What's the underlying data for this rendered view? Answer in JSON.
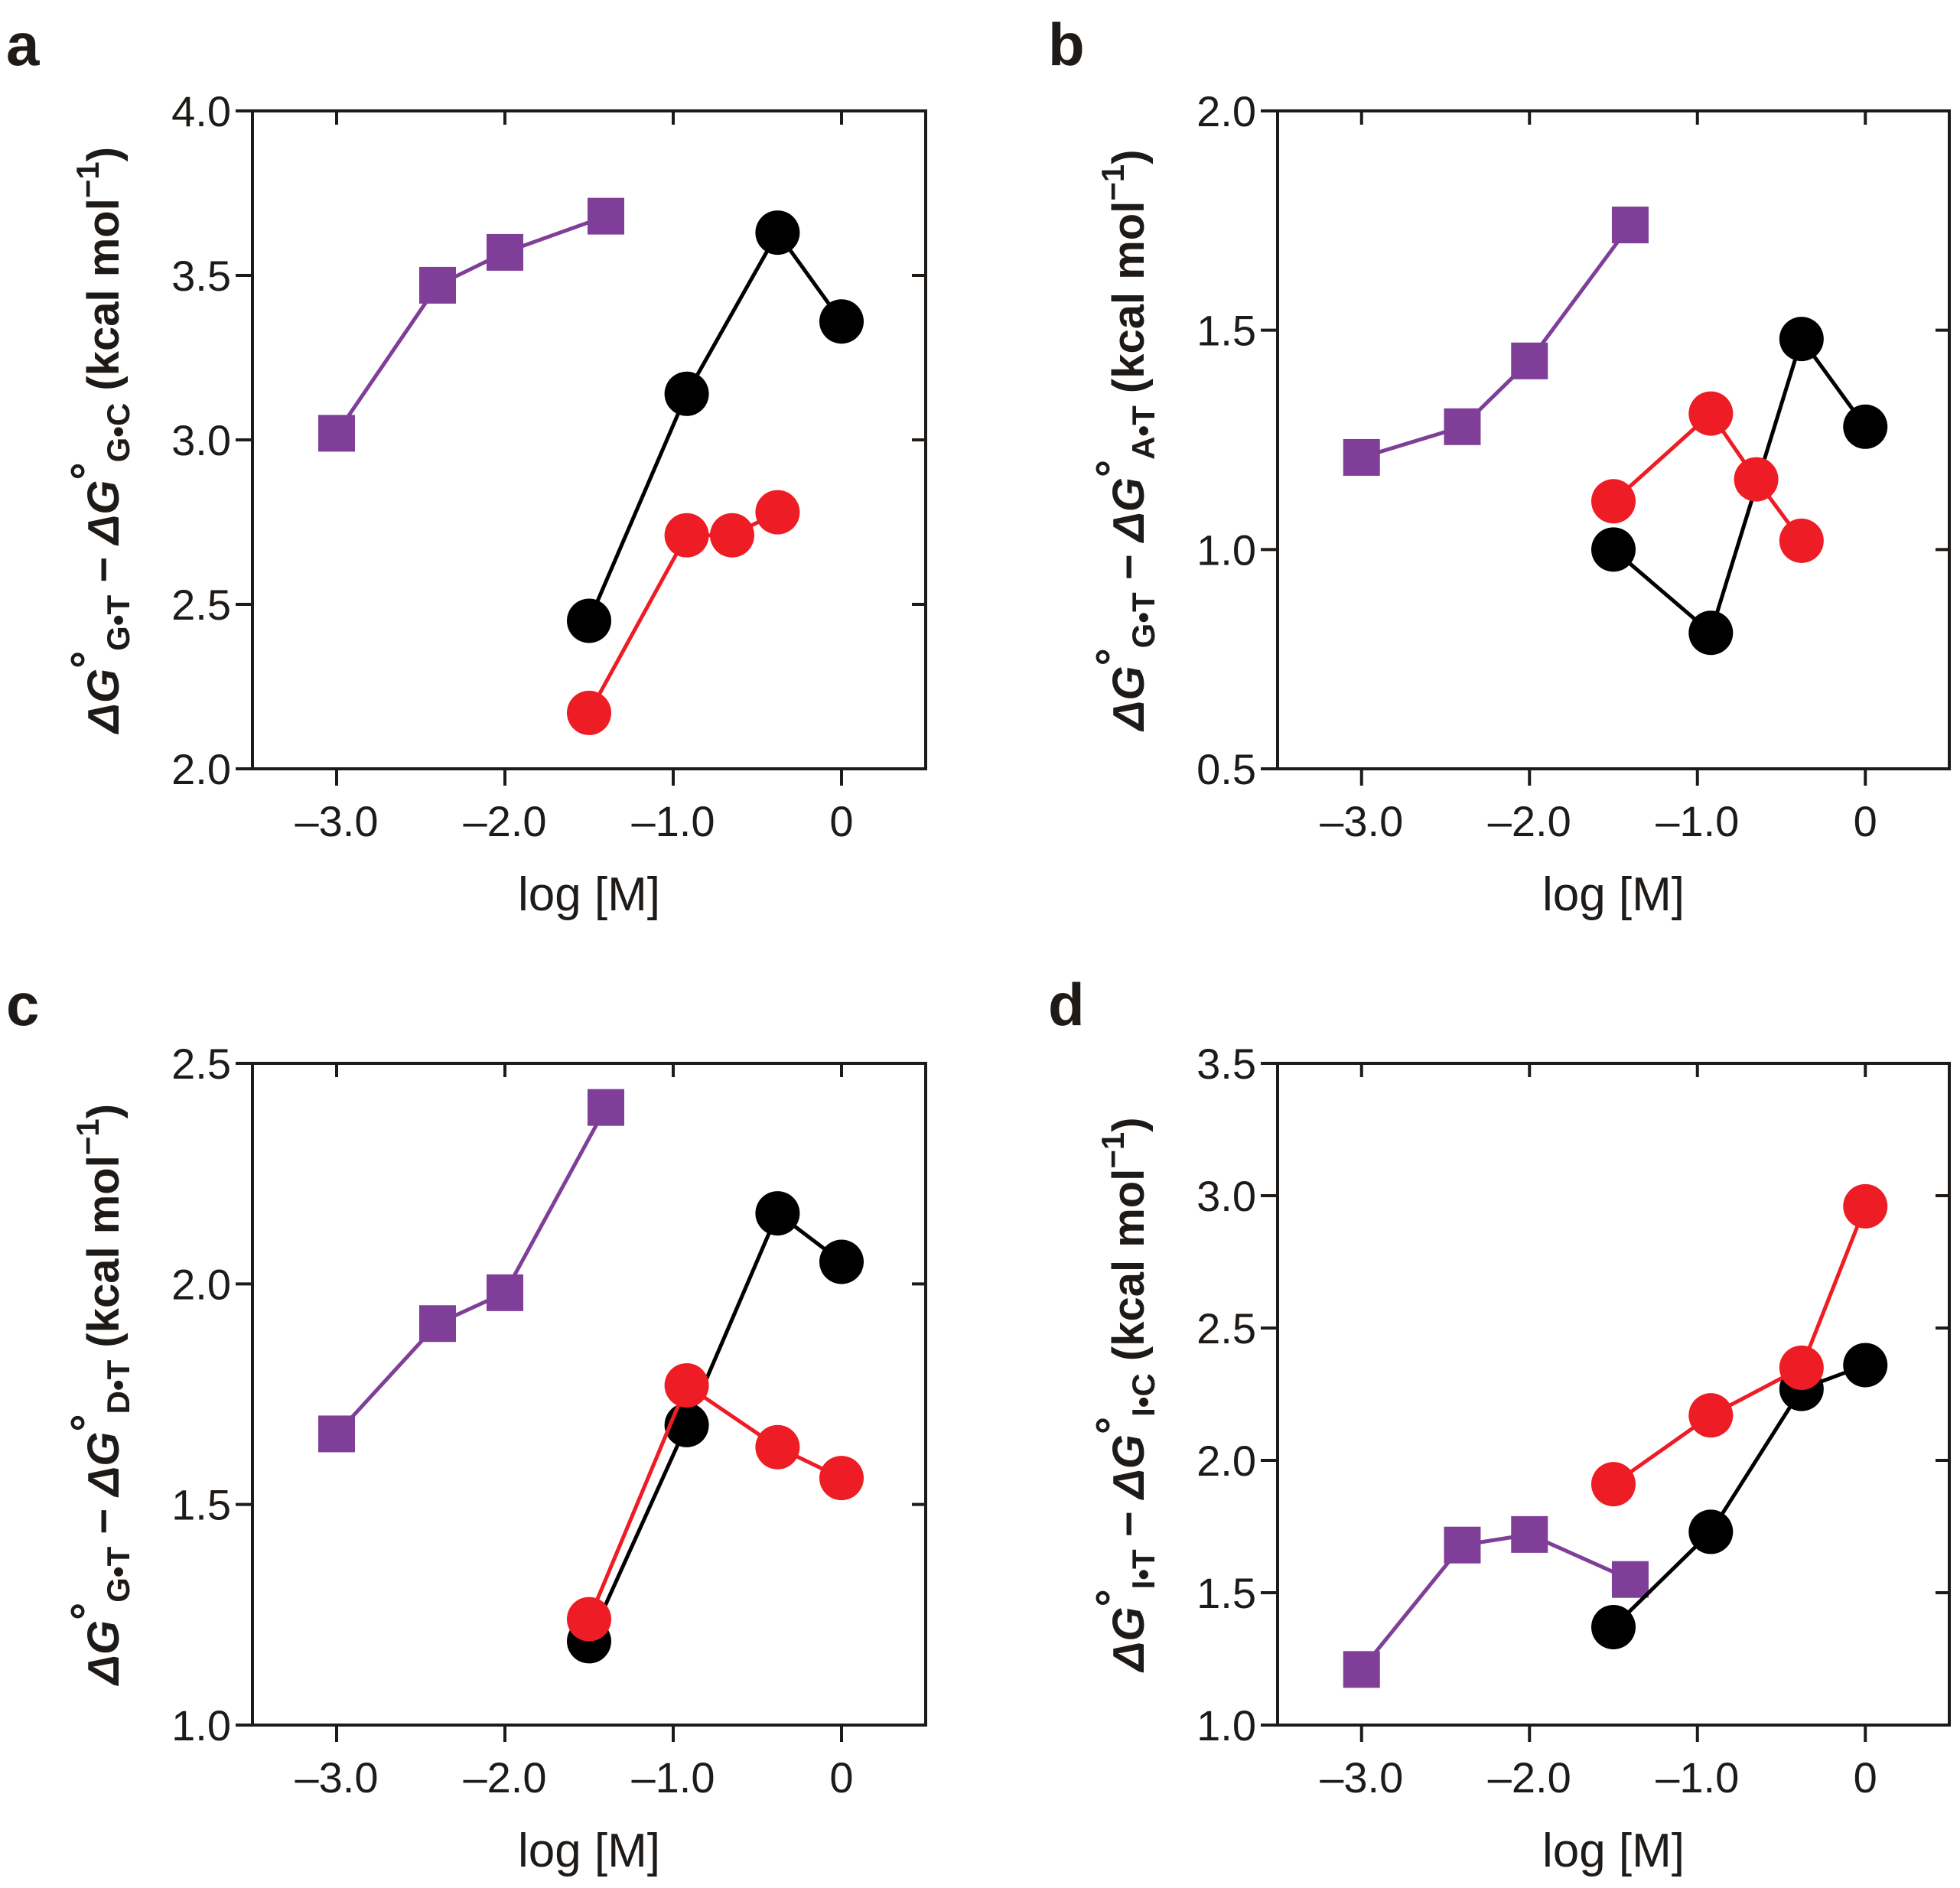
{
  "colors": {
    "purple": "#7f3f98",
    "black": "#000000",
    "red": "#ee1c24",
    "axis": "#1e1a17"
  },
  "chart_data": [
    {
      "panel": "a",
      "type": "line",
      "xlabel": "log [M]",
      "ylabel": {
        "delta": "ΔG",
        "deg": "°",
        "sub1": "G•T",
        "mid": " − ",
        "sub2": "G•C",
        "unit": " (kcal mol",
        "sup": "−1",
        "close": ")"
      },
      "xlim": [
        -3.5,
        0.5
      ],
      "ylim": [
        2.0,
        4.0
      ],
      "xticks": [
        -3.0,
        -2.0,
        -1.0,
        0
      ],
      "xtick_labels": [
        "–3.0",
        "–2.0",
        "–1.0",
        "0"
      ],
      "yticks": [
        2.0,
        2.5,
        3.0,
        3.5,
        4.0
      ],
      "ytick_labels": [
        "2.0",
        "2.5",
        "3.0",
        "3.5",
        "4.0"
      ],
      "series": [
        {
          "name": "purple-squares",
          "color": "purple",
          "marker": "square",
          "x": [
            -3.0,
            -2.4,
            -2.0,
            -1.4
          ],
          "y": [
            3.02,
            3.47,
            3.57,
            3.68
          ]
        },
        {
          "name": "black-circles",
          "color": "black",
          "marker": "circle",
          "x": [
            -1.5,
            -0.92,
            -0.38,
            0.0
          ],
          "y": [
            2.45,
            3.14,
            3.63,
            3.36
          ]
        },
        {
          "name": "red-circles",
          "color": "red",
          "marker": "circle",
          "x": [
            -1.5,
            -0.92,
            -0.65,
            -0.38
          ],
          "y": [
            2.17,
            2.71,
            2.71,
            2.78
          ]
        }
      ]
    },
    {
      "panel": "b",
      "type": "line",
      "xlabel": "log [M]",
      "ylabel": {
        "delta": "ΔG",
        "deg": "°",
        "sub1": "G•T",
        "mid": " − ",
        "sub2": "A•T",
        "unit": " (kcal mol",
        "sup": "−1",
        "close": ")"
      },
      "xlim": [
        -3.5,
        0.5
      ],
      "ylim": [
        0.5,
        2.0
      ],
      "xticks": [
        -3.0,
        -2.0,
        -1.0,
        0
      ],
      "xtick_labels": [
        "–3.0",
        "–2.0",
        "–1.0",
        "0"
      ],
      "yticks": [
        0.5,
        1.0,
        1.5,
        2.0
      ],
      "ytick_labels": [
        "0.5",
        "1.0",
        "1.5",
        "2.0"
      ],
      "series": [
        {
          "name": "purple-squares",
          "color": "purple",
          "marker": "square",
          "x": [
            -3.0,
            -2.4,
            -2.0,
            -1.4
          ],
          "y": [
            1.21,
            1.28,
            1.43,
            1.74
          ]
        },
        {
          "name": "black-circles",
          "color": "black",
          "marker": "circle",
          "x": [
            -1.5,
            -0.92,
            -0.38,
            0.0
          ],
          "y": [
            1.0,
            0.81,
            1.48,
            1.28
          ]
        },
        {
          "name": "red-circles",
          "color": "red",
          "marker": "circle",
          "x": [
            -1.5,
            -0.92,
            -0.65,
            -0.38
          ],
          "y": [
            1.11,
            1.31,
            1.16,
            1.02
          ]
        }
      ]
    },
    {
      "panel": "c",
      "type": "line",
      "xlabel": "log [M]",
      "ylabel": {
        "delta": "ΔG",
        "deg": "°",
        "sub1": "G•T",
        "mid": " − ",
        "sub2": "D•T",
        "unit": " (kcal mol",
        "sup": "−1",
        "close": ")"
      },
      "xlim": [
        -3.5,
        0.5
      ],
      "ylim": [
        1.0,
        2.5
      ],
      "xticks": [
        -3.0,
        -2.0,
        -1.0,
        0
      ],
      "xtick_labels": [
        "–3.0",
        "–2.0",
        "–1.0",
        "0"
      ],
      "yticks": [
        1.0,
        1.5,
        2.0,
        2.5
      ],
      "ytick_labels": [
        "1.0",
        "1.5",
        "2.0",
        "2.5"
      ],
      "series": [
        {
          "name": "purple-squares",
          "color": "purple",
          "marker": "square",
          "x": [
            -3.0,
            -2.4,
            -2.0,
            -1.4
          ],
          "y": [
            1.66,
            1.91,
            1.98,
            2.4
          ]
        },
        {
          "name": "black-circles",
          "color": "black",
          "marker": "circle",
          "x": [
            -1.5,
            -0.92,
            -0.38,
            0.0
          ],
          "y": [
            1.19,
            1.68,
            2.16,
            2.05
          ]
        },
        {
          "name": "red-circles",
          "color": "red",
          "marker": "circle",
          "x": [
            -1.5,
            -0.92,
            -0.38,
            0.0
          ],
          "y": [
            1.24,
            1.77,
            1.63,
            1.56
          ]
        }
      ]
    },
    {
      "panel": "d",
      "type": "line",
      "xlabel": "log [M]",
      "ylabel": {
        "delta": "ΔG",
        "deg": "°",
        "sub1": "I•T",
        "mid": " − ",
        "sub2": "I•C",
        "unit": " (kcal mol",
        "sup": "−1",
        "close": ")"
      },
      "xlim": [
        -3.5,
        0.5
      ],
      "ylim": [
        1.0,
        3.5
      ],
      "xticks": [
        -3.0,
        -2.0,
        -1.0,
        0
      ],
      "xtick_labels": [
        "–3.0",
        "–2.0",
        "–1.0",
        "0"
      ],
      "yticks": [
        1.0,
        1.5,
        2.0,
        2.5,
        3.0,
        3.5
      ],
      "ytick_labels": [
        "1.0",
        "1.5",
        "2.0",
        "2.5",
        "3.0",
        "3.5"
      ],
      "series": [
        {
          "name": "purple-squares",
          "color": "purple",
          "marker": "square",
          "x": [
            -3.0,
            -2.4,
            -2.0,
            -1.4
          ],
          "y": [
            1.21,
            1.68,
            1.72,
            1.55
          ]
        },
        {
          "name": "black-circles",
          "color": "black",
          "marker": "circle",
          "x": [
            -1.5,
            -0.92,
            -0.38,
            0.0
          ],
          "y": [
            1.37,
            1.73,
            2.27,
            2.36
          ]
        },
        {
          "name": "red-circles",
          "color": "red",
          "marker": "circle",
          "x": [
            -1.5,
            -0.92,
            -0.38,
            0.0
          ],
          "y": [
            1.91,
            2.17,
            2.35,
            2.96
          ]
        }
      ]
    }
  ]
}
